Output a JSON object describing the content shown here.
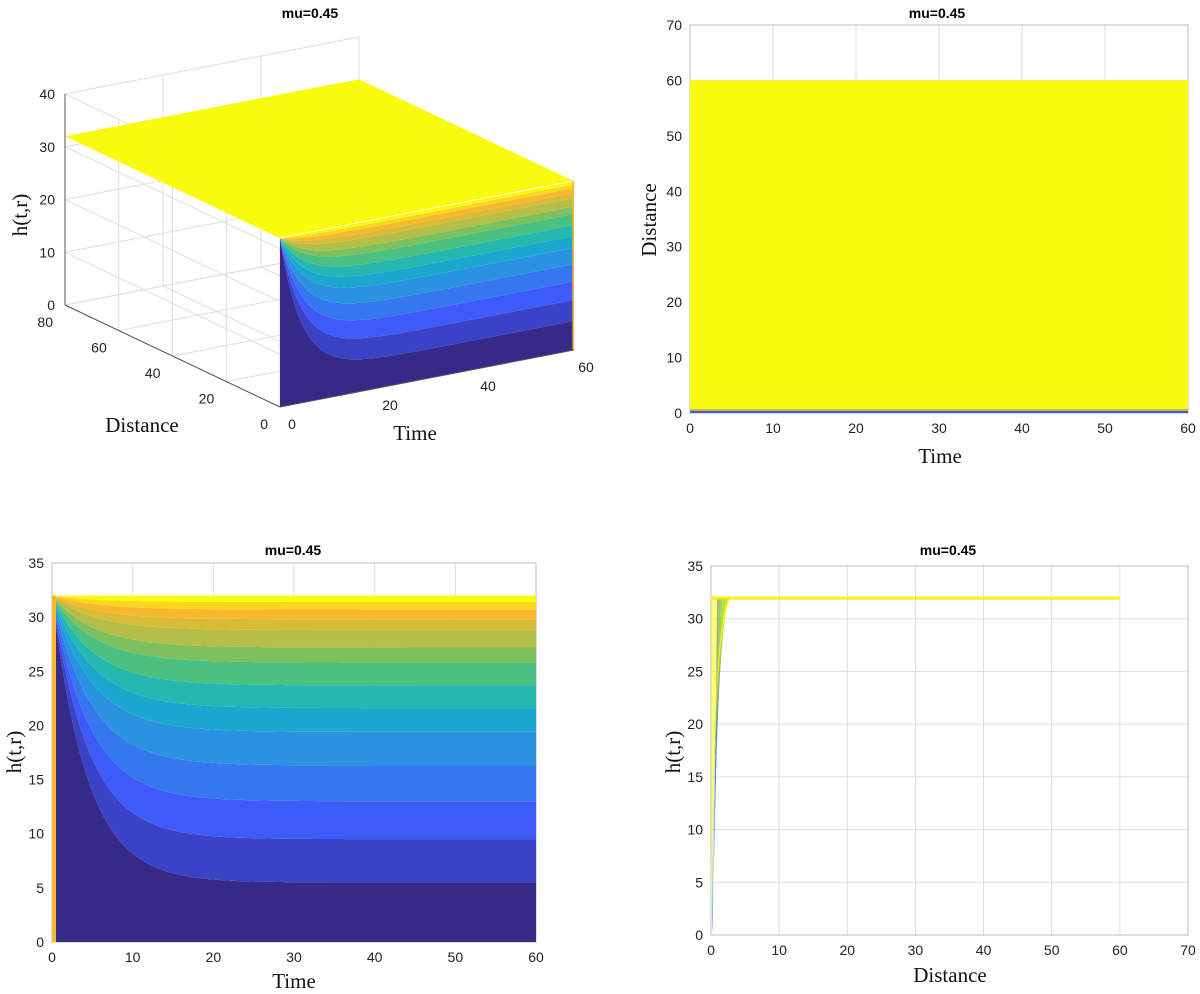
{
  "colors": {
    "parula": [
      "#352a87",
      "#3f56fa",
      "#2e8de6",
      "#14b4c4",
      "#5cc36c",
      "#c5bd3f",
      "#fbb82b",
      "#f9fb0e"
    ],
    "background": "#ffffff",
    "grid": "#dedede"
  },
  "chart_data": [
    {
      "type": "surface",
      "title": "mu=0.45",
      "xlabel": "Time",
      "ylabel": "Distance",
      "zlabel": "h(t,r)",
      "xlim": [
        0,
        60
      ],
      "ylim": [
        0,
        80
      ],
      "zlim": [
        0,
        40
      ],
      "xticks": [
        "0",
        "20",
        "40",
        "60"
      ],
      "yticks": [
        "0",
        "20",
        "40",
        "60",
        "80"
      ],
      "zticks": [
        "0",
        "10",
        "20",
        "30",
        "40"
      ],
      "plateau": 32,
      "grid": true
    },
    {
      "type": "heatmap",
      "title": "mu=0.45",
      "xlabel": "Time",
      "ylabel": "Distance",
      "xlim": [
        0,
        60
      ],
      "ylim": [
        0,
        70
      ],
      "xticks": [
        "0",
        "10",
        "20",
        "30",
        "40",
        "50",
        "60"
      ],
      "yticks": [
        "0",
        "10",
        "20",
        "30",
        "40",
        "50",
        "60",
        "70"
      ],
      "fill_range": [
        0,
        60
      ],
      "grid": true
    },
    {
      "type": "area",
      "title": "mu=0.45",
      "xlabel": "Time",
      "ylabel": "h(t,r)",
      "xlim": [
        0,
        60
      ],
      "ylim": [
        0,
        35
      ],
      "xticks": [
        "0",
        "10",
        "20",
        "30",
        "40",
        "50",
        "60"
      ],
      "yticks": [
        "0",
        "5",
        "10",
        "15",
        "20",
        "25",
        "30",
        "35"
      ],
      "top": 32,
      "band_endpoints_at_t60": [
        5.5,
        9.5,
        13,
        16.3,
        19.4,
        21.6,
        23.7,
        25.8,
        27.2,
        28.8,
        29.8,
        30.7,
        31.4
      ]
    },
    {
      "type": "line",
      "title": "mu=0.45",
      "xlabel": "Distance",
      "ylabel": "h(t,r)",
      "xlim": [
        0,
        70
      ],
      "ylim": [
        0,
        35
      ],
      "xticks": [
        "0",
        "10",
        "20",
        "30",
        "40",
        "50",
        "60",
        "70"
      ],
      "yticks": [
        "0",
        "5",
        "10",
        "15",
        "20",
        "25",
        "30",
        "35"
      ],
      "plateau": 32,
      "x_end": 60,
      "rise_end_x": 3,
      "grid": true
    }
  ]
}
